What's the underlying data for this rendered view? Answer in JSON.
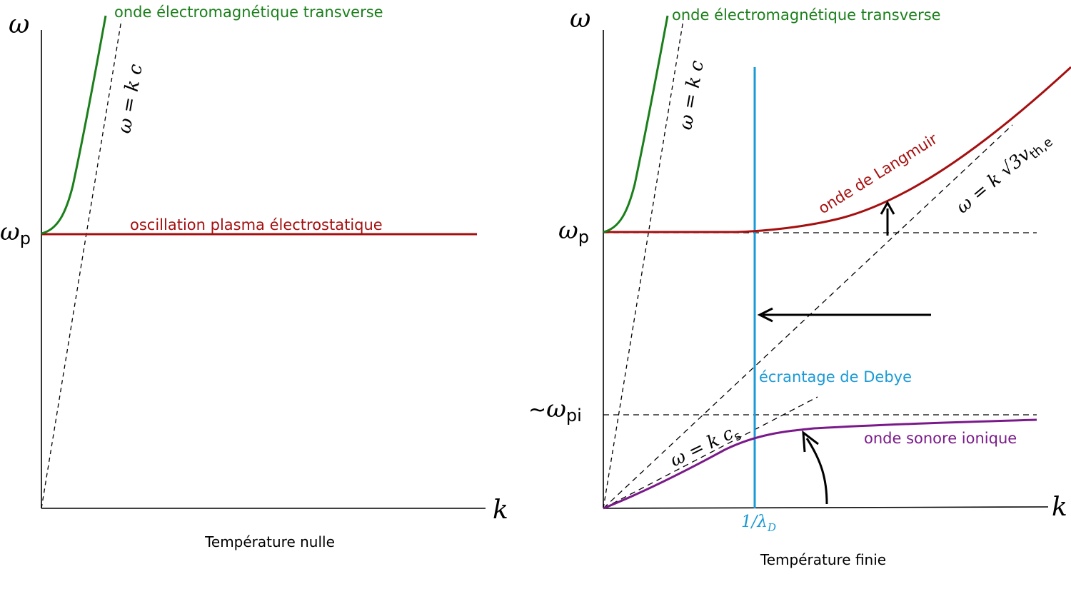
{
  "left_panel": {
    "omega_axis_label": "ω",
    "k_axis_label": "k",
    "omega_p_symbol": "ω",
    "omega_p_subscript": "p",
    "em_wave_label": "onde électromagnétique transverse",
    "light_line_label": "ω = k c",
    "plasma_label": "oscillation plasma électrostatique",
    "caption": "Température nulle"
  },
  "right_panel": {
    "omega_axis_label": "ω",
    "k_axis_label": "k",
    "omega_p_symbol": "ω",
    "omega_p_subscript": "p",
    "omega_pi_prefix": "~",
    "omega_pi_symbol": "ω",
    "omega_pi_subscript": "pi",
    "em_wave_label": "onde électromagnétique transverse",
    "light_line_label": "ω = k c",
    "langmuir_label": "onde de Langmuir",
    "thermal_line_main": "ω = k √3v",
    "thermal_line_sub": "th,e",
    "debye_label": "écrantage de Debye",
    "debye_tick_main": "1/λ",
    "debye_tick_sub": "D",
    "sound_line_main": "ω = k c",
    "sound_line_sub": "s",
    "ion_sound_label": "onde sonore ionique",
    "caption": "Température finie"
  },
  "colors": {
    "em_wave": "#1a7f1a",
    "langmuir": "#a50f0f",
    "ion_sound": "#7a1a8a",
    "debye": "#1a9ad6",
    "axis": "#000000"
  }
}
